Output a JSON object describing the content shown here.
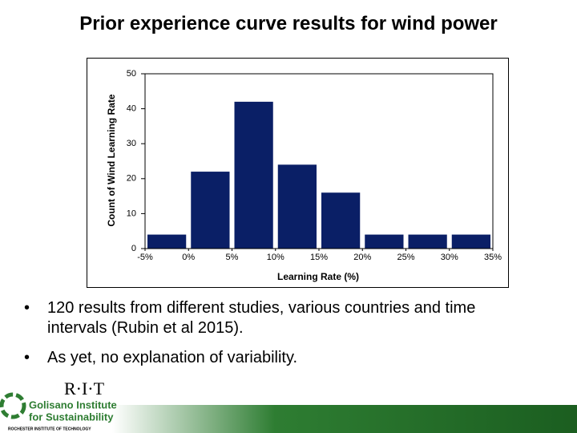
{
  "title": "Prior experience curve results for wind power",
  "chart_data": {
    "type": "histogram",
    "bins": [
      -5,
      0,
      5,
      10,
      15,
      20,
      25,
      30,
      35
    ],
    "values": [
      4,
      22,
      42,
      24,
      16,
      4,
      4,
      4
    ],
    "color": "#0a1f66",
    "xlabel": "Learning Rate (%)",
    "ylabel": "Count of Wind Learning Rate",
    "xlim": [
      -5,
      35
    ],
    "ylim": [
      0,
      50
    ],
    "xticks": [
      {
        "value": -5,
        "label": "-5%"
      },
      {
        "value": 0,
        "label": "0%"
      },
      {
        "value": 5,
        "label": "5%"
      },
      {
        "value": 10,
        "label": "10%"
      },
      {
        "value": 15,
        "label": "15%"
      },
      {
        "value": 20,
        "label": "20%"
      },
      {
        "value": 25,
        "label": "25%"
      },
      {
        "value": 30,
        "label": "30%"
      },
      {
        "value": 35,
        "label": "35%"
      }
    ],
    "yticks": [
      0,
      10,
      20,
      30,
      40,
      50
    ]
  },
  "bullets": [
    "120 results from different studies, various countries and time intervals (Rubin et al 2015).",
    "As yet, no explanation of variability."
  ],
  "logo": {
    "rit": "R·I·T",
    "line1": "Golisano Institute",
    "line2": "for Sustainability",
    "line3": "ROCHESTER INSTITUTE OF TECHNOLOGY"
  }
}
